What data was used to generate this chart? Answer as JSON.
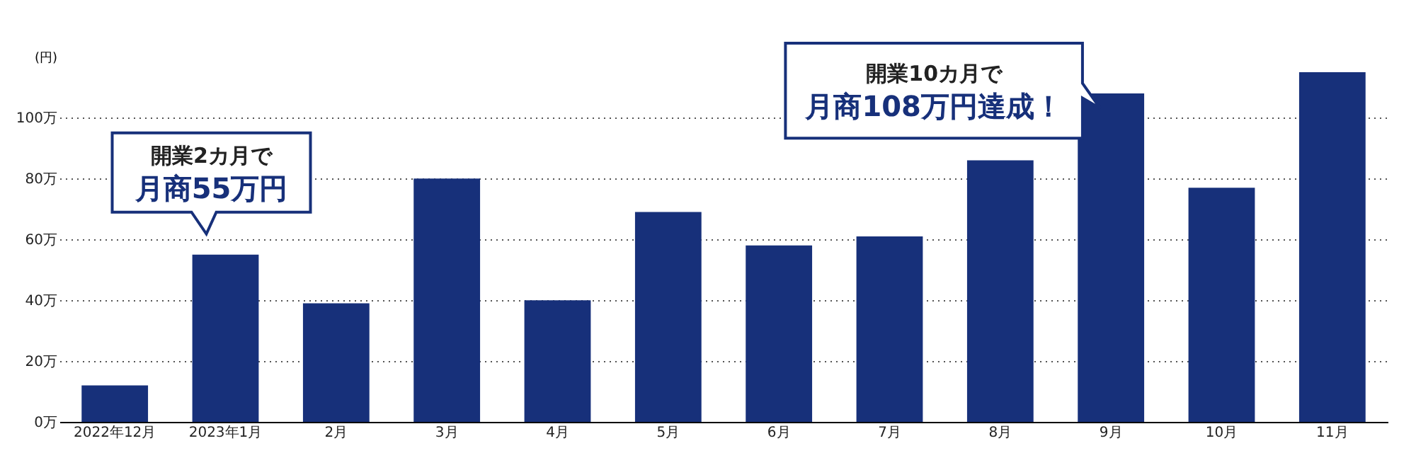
{
  "chart_data": {
    "type": "bar",
    "ylabel": "(円)",
    "categories": [
      "2022年12月",
      "2023年1月",
      "2月",
      "3月",
      "4月",
      "5月",
      "6月",
      "7月",
      "8月",
      "9月",
      "10月",
      "11月"
    ],
    "values": [
      12,
      55,
      39,
      80,
      40,
      69,
      58,
      61,
      86,
      108,
      77,
      115
    ],
    "color": "#17307a",
    "ylim": [
      0,
      115
    ],
    "yticks": [
      {
        "value": 0,
        "label": "0万"
      },
      {
        "value": 20,
        "label": "20万"
      },
      {
        "value": 40,
        "label": "40万"
      },
      {
        "value": 60,
        "label": "60万"
      },
      {
        "value": 80,
        "label": "80万"
      },
      {
        "value": 100,
        "label": "100万"
      }
    ],
    "grid": "y",
    "annotations": [
      "開業2カ月で",
      {
        "text": "月商55万円",
        "x": "2023年1月",
        "y": 55
      },
      "開業10カ月で",
      {
        "text": "月商108万円達成！",
        "x": "9月",
        "y": 108
      }
    ]
  }
}
